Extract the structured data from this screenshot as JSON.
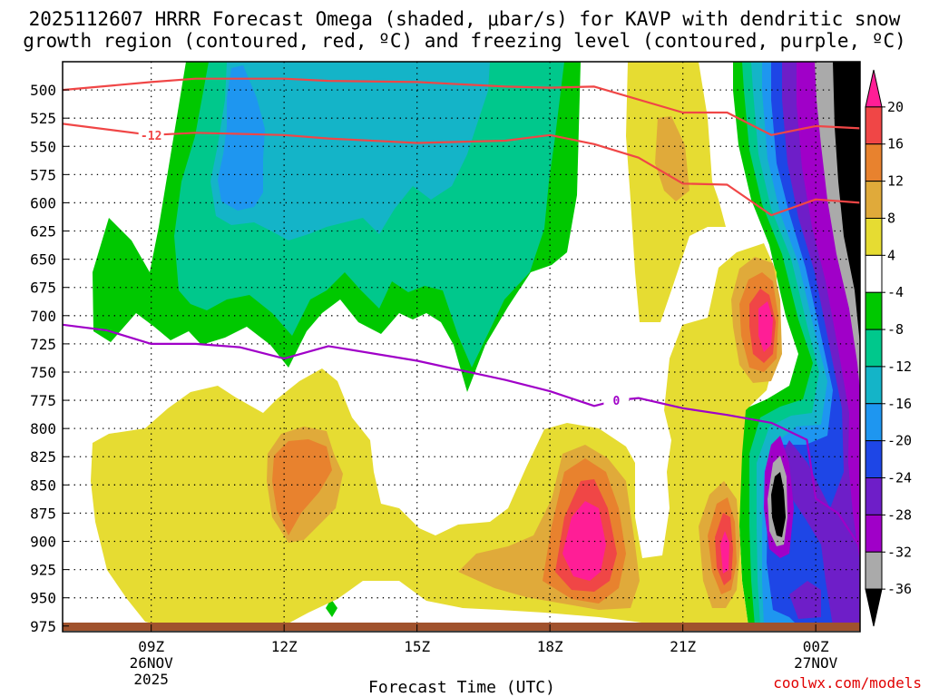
{
  "chart_data": {
    "type": "heatmap",
    "title_line1": "2025112607 HRRR Forecast Omega (shaded, μbar/s) for KAVP with dendritic snow",
    "title_line2": "growth region (contoured, red, ºC) and freezing level (contoured, purple, ºC)",
    "xlabel": "Forecast Time (UTC)",
    "credit": "coolwx.com/models",
    "x_ticks": [
      {
        "hour": 9,
        "label": "09Z",
        "date": "26NOV",
        "year": "2025"
      },
      {
        "hour": 12,
        "label": "12Z"
      },
      {
        "hour": 15,
        "label": "15Z"
      },
      {
        "hour": 18,
        "label": "18Z"
      },
      {
        "hour": 21,
        "label": "21Z"
      },
      {
        "hour": 24,
        "label": "00Z",
        "date": "27NOV"
      }
    ],
    "xlim": [
      7,
      25
    ],
    "ylim": [
      475,
      980
    ],
    "y_ticks": [
      500,
      525,
      550,
      575,
      600,
      625,
      650,
      675,
      700,
      725,
      750,
      775,
      800,
      825,
      850,
      875,
      900,
      925,
      950,
      975
    ],
    "colorbar": {
      "labels": [
        "20",
        "16",
        "12",
        "8",
        "4",
        "-4",
        "-8",
        "-12",
        "-16",
        "-20",
        "-24",
        "-28",
        "-32",
        "-36"
      ],
      "colors": [
        "#ff1e96",
        "#f04646",
        "#e8822e",
        "#e0aa3a",
        "#e6dc32",
        "#ffffff",
        "#00c800",
        "#00c88c",
        "#14b4c8",
        "#1e96f0",
        "#1e46e6",
        "#6e1ec8",
        "#a000c8",
        "#aaaaaa",
        "#000000"
      ]
    },
    "series": [
      {
        "name": "-12",
        "kind": "dendritic_snow_growth_top",
        "color": "#f04646",
        "x": [
          7,
          9,
          10,
          12,
          13,
          15,
          17,
          18,
          19,
          21,
          22,
          23,
          24,
          25
        ],
        "y": [
          500,
          493,
          490,
          490,
          492,
          493,
          497,
          498,
          497,
          520,
          520,
          540,
          532,
          534
        ]
      },
      {
        "name": "-12",
        "kind": "dendritic_snow_growth_bottom",
        "color": "#f04646",
        "x": [
          7,
          9,
          10,
          12,
          13,
          15,
          17,
          18,
          19,
          20,
          21,
          22,
          23,
          24,
          25
        ],
        "y": [
          530,
          540,
          538,
          540,
          543,
          547,
          545,
          540,
          548,
          560,
          583,
          584,
          611,
          597,
          600
        ]
      },
      {
        "name": "0",
        "kind": "freezing_level",
        "color": "#a000c8",
        "x": [
          7,
          8,
          9,
          10,
          11,
          12,
          13,
          15,
          17,
          18,
          19,
          19.5,
          20,
          21,
          22,
          23,
          23.8,
          24,
          24.5,
          25
        ],
        "y": [
          708,
          713,
          725,
          725,
          728,
          738,
          727,
          740,
          757,
          767,
          780,
          775,
          773,
          782,
          788,
          795,
          810,
          862,
          875,
          905
        ]
      }
    ]
  }
}
